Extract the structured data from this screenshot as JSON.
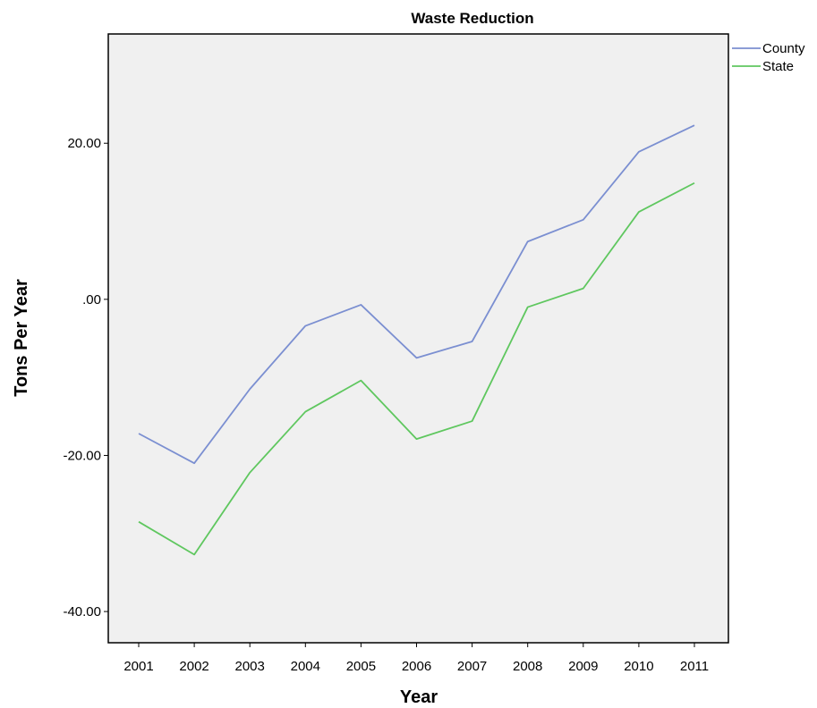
{
  "chart_data": {
    "type": "line",
    "title": "Waste Reduction",
    "xlabel": "Year",
    "ylabel": "Tons Per Year",
    "categories": [
      "2001",
      "2002",
      "2003",
      "2004",
      "2005",
      "2006",
      "2007",
      "2008",
      "2009",
      "2010",
      "2011"
    ],
    "series": [
      {
        "name": "County",
        "color": "#7b8fd1",
        "values": [
          -17.2,
          -21.0,
          -11.5,
          -3.4,
          -0.7,
          -7.5,
          -5.4,
          7.4,
          10.2,
          18.9,
          22.3
        ]
      },
      {
        "name": "State",
        "color": "#5fc75f",
        "values": [
          -28.5,
          -32.7,
          -22.2,
          -14.4,
          -10.4,
          -17.9,
          -15.6,
          -1.0,
          1.4,
          11.2,
          14.9
        ]
      }
    ],
    "yticks": [
      20,
      0,
      -20,
      -40
    ],
    "ytick_labels": [
      "20.00",
      ".00",
      "-20.00",
      "-40.00"
    ],
    "ylim": [
      -44,
      34
    ],
    "grid": false,
    "legend_position": "top-right outside",
    "plot_background": "#f0f0f0"
  }
}
